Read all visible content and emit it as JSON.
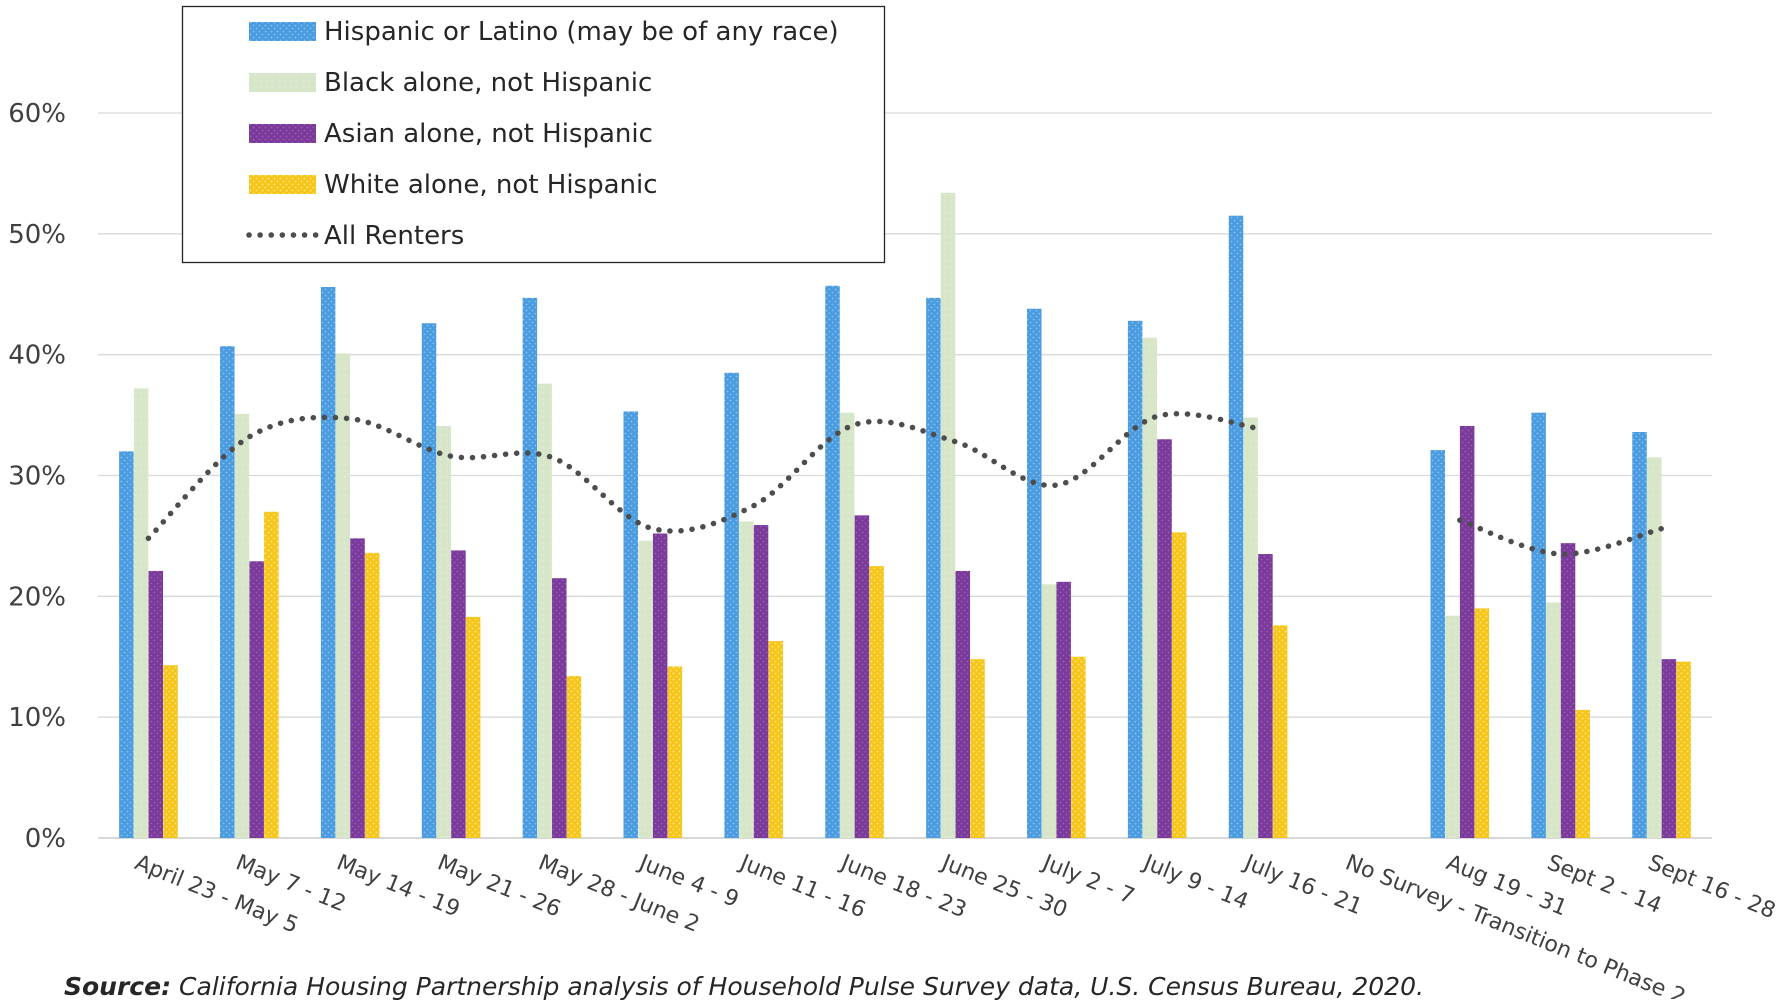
{
  "chart_data": {
    "type": "bar",
    "categories": [
      "April 23 - May 5",
      "May 7 - 12",
      "May 14 - 19",
      "May 21 - 26",
      "May 28 - June 2",
      "June 4 - 9",
      "June 11 - 16",
      "June 18 - 23",
      "June 25 - 30",
      "July 2 - 7",
      "July 9 - 14",
      "July 16 - 21",
      "No Survey - Transition to Phase 2",
      "Aug 19 - 31",
      "Sept 2 - 14",
      "Sept 16 - 28"
    ],
    "yticks": [
      "0%",
      "10%",
      "20%",
      "30%",
      "40%",
      "50%",
      "60%"
    ],
    "ylim": [
      0,
      60
    ],
    "grid": true,
    "legend_position": "top-left",
    "series": [
      {
        "name": "Hispanic or Latino (may be of any race)",
        "kind": "bar",
        "color": "#4A9BE0",
        "values": [
          32,
          40.7,
          45.6,
          42.6,
          44.7,
          35.3,
          38.5,
          45.7,
          44.7,
          43.8,
          42.8,
          51.5,
          null,
          32.1,
          35.2,
          33.6
        ]
      },
      {
        "name": "Black alone, not Hispanic",
        "kind": "bar",
        "color": "#D7E6C8",
        "values": [
          37.2,
          35.1,
          40.1,
          34.1,
          37.6,
          24.6,
          26.2,
          35.2,
          53.4,
          21,
          41.4,
          34.8,
          null,
          18.4,
          19.5,
          31.5
        ]
      },
      {
        "name": "Asian alone, not Hispanic",
        "kind": "bar",
        "color": "#7A3A9A",
        "values": [
          22.1,
          22.9,
          24.8,
          23.8,
          21.5,
          25.2,
          25.9,
          26.7,
          22.1,
          21.2,
          33,
          23.5,
          null,
          34.1,
          24.4,
          14.8
        ]
      },
      {
        "name": "White alone, not Hispanic",
        "kind": "bar",
        "color": "#F5C518",
        "values": [
          14.3,
          27,
          23.6,
          18.3,
          13.4,
          14.2,
          16.3,
          22.5,
          14.8,
          15,
          25.3,
          17.6,
          null,
          19,
          10.6,
          14.6
        ]
      },
      {
        "name": "All Renters",
        "kind": "line",
        "color": "#4D4D4D",
        "values": [
          24.8,
          33.2,
          34.7,
          31.6,
          31.5,
          25.6,
          27.5,
          34.2,
          32.8,
          29.2,
          34.9,
          33.9,
          null,
          26.3,
          23.5,
          25.6
        ]
      }
    ]
  },
  "source": {
    "label": "Source:",
    "text": " California Housing Partnership analysis of Household Pulse Survey data, U.S. Census Bureau, 2020."
  }
}
